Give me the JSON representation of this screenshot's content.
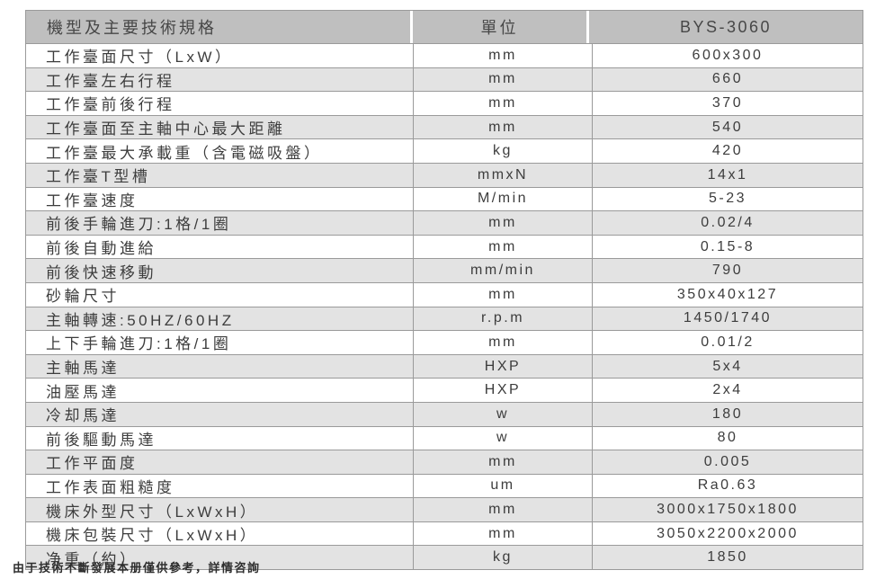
{
  "table": {
    "header": {
      "spec": "機型及主要技術規格",
      "unit": "單位",
      "model": "BYS-3060"
    },
    "rows": [
      {
        "spec": "工作臺面尺寸（LxW）",
        "unit": "mm",
        "value": "600x300"
      },
      {
        "spec": "工作臺左右行程",
        "unit": "mm",
        "value": "660"
      },
      {
        "spec": "工作臺前後行程",
        "unit": "mm",
        "value": "370"
      },
      {
        "spec": "工作臺面至主軸中心最大距離",
        "unit": "mm",
        "value": "540"
      },
      {
        "spec": "工作臺最大承載重（含電磁吸盤）",
        "unit": "kg",
        "value": "420"
      },
      {
        "spec": "工作臺T型槽",
        "unit": "mmxN",
        "value": "14x1"
      },
      {
        "spec": "工作臺速度",
        "unit": "M/min",
        "value": "5-23"
      },
      {
        "spec": "前後手輪進刀:1格/1圈",
        "unit": "mm",
        "value": "0.02/4"
      },
      {
        "spec": "前後自動進給",
        "unit": "mm",
        "value": "0.15-8"
      },
      {
        "spec": "前後快速移動",
        "unit": "mm/min",
        "value": "790"
      },
      {
        "spec": "砂輪尺寸",
        "unit": "mm",
        "value": "350x40x127"
      },
      {
        "spec": "主軸轉速:50HZ/60HZ",
        "unit": "r.p.m",
        "value": "1450/1740"
      },
      {
        "spec": "上下手輪進刀:1格/1圈",
        "unit": "mm",
        "value": "0.01/2"
      },
      {
        "spec": "主軸馬達",
        "unit": "HXP",
        "value": "5x4"
      },
      {
        "spec": "油壓馬達",
        "unit": "HXP",
        "value": "2x4"
      },
      {
        "spec": "冷却馬達",
        "unit": "w",
        "value": "180"
      },
      {
        "spec": "前後驅動馬達",
        "unit": "w",
        "value": "80"
      },
      {
        "spec": "工作平面度",
        "unit": "mm",
        "value": "0.005"
      },
      {
        "spec": "工作表面粗糙度",
        "unit": "um",
        "value": "Ra0.63"
      },
      {
        "spec": "機床外型尺寸（LxWxH）",
        "unit": "mm",
        "value": "3000x1750x1800"
      },
      {
        "spec": "機床包裝尺寸（LxWxH）",
        "unit": "mm",
        "value": "3050x2200x2000"
      },
      {
        "spec": "净重（約）",
        "unit": "kg",
        "value": "1850"
      }
    ]
  },
  "footer": {
    "note": "由于技術不斷發展本册僅供參考，詳情咨詢"
  },
  "colors": {
    "header_bg": "#bfbfbf",
    "alt_row_bg": "#e3e3e3",
    "border": "#9a9a9a",
    "text": "#3d3d3d"
  }
}
